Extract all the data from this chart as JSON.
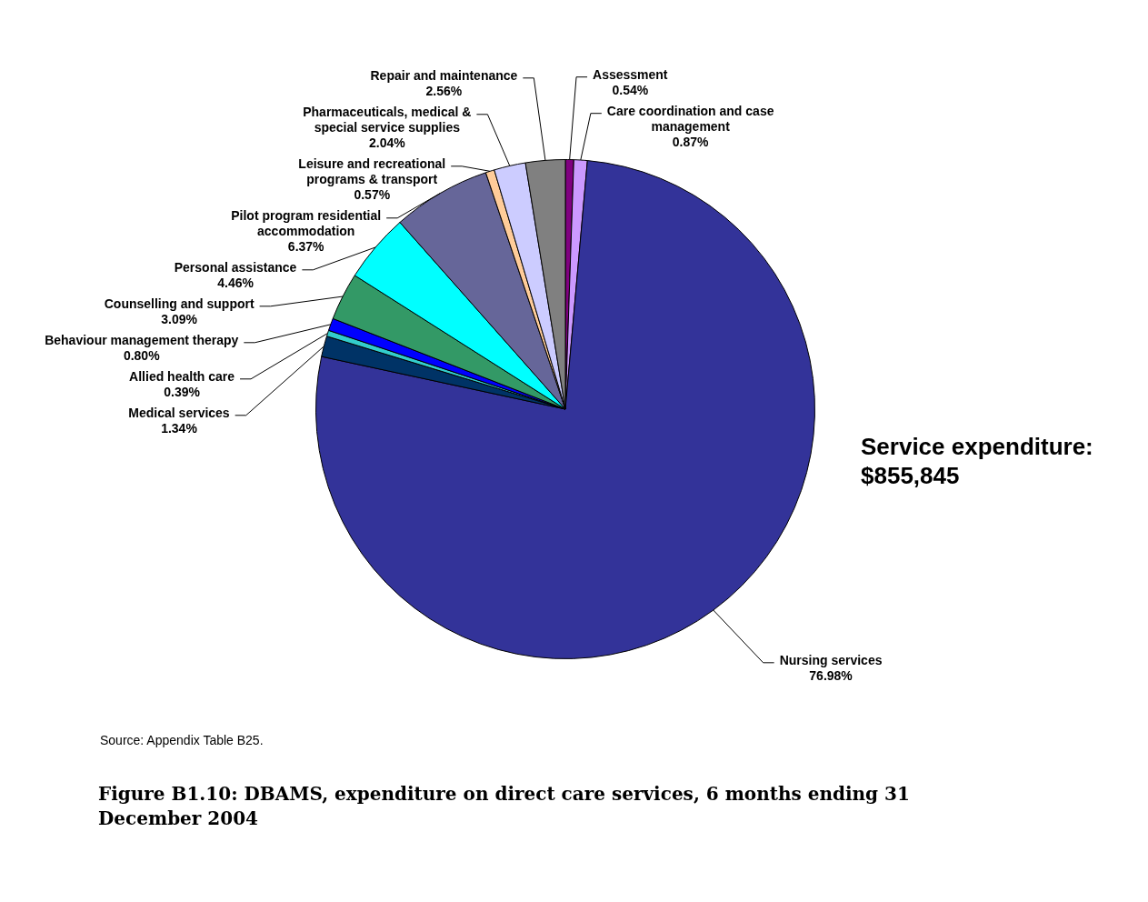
{
  "chart_data": {
    "type": "pie",
    "title": "Figure B1.10: DBAMS, expenditure on direct care services, 6 months ending 31 December 2004",
    "categories": [
      "Assessment",
      "Care coordination and case management",
      "Nursing services",
      "Medical services",
      "Allied health care",
      "Behaviour management therapy",
      "Counselling and support",
      "Personal assistance",
      "Pilot program residential accommodation",
      "Leisure and recreational programs & transport",
      "Pharmaceuticals, medical & special service supplies",
      "Repair and maintenance"
    ],
    "values": [
      0.54,
      0.87,
      76.98,
      1.34,
      0.39,
      0.8,
      3.09,
      4.46,
      6.37,
      0.57,
      2.04,
      2.56
    ],
    "value_labels": [
      "0.54%",
      "0.87%",
      "76.98%",
      "1.34%",
      "0.39%",
      "0.80%",
      "3.09%",
      "4.46%",
      "6.37%",
      "0.57%",
      "2.04%",
      "2.56%"
    ],
    "colors": [
      "#800080",
      "#cc99ff",
      "#333399",
      "#003366",
      "#33cccc",
      "#0000ff",
      "#339966",
      "#00ffff",
      "#666699",
      "#ffcc99",
      "#ccccff",
      "#808080"
    ],
    "legend": false,
    "annotations": [
      "Service expenditure: $855,845",
      "Source: Appendix Table B25."
    ]
  }
}
